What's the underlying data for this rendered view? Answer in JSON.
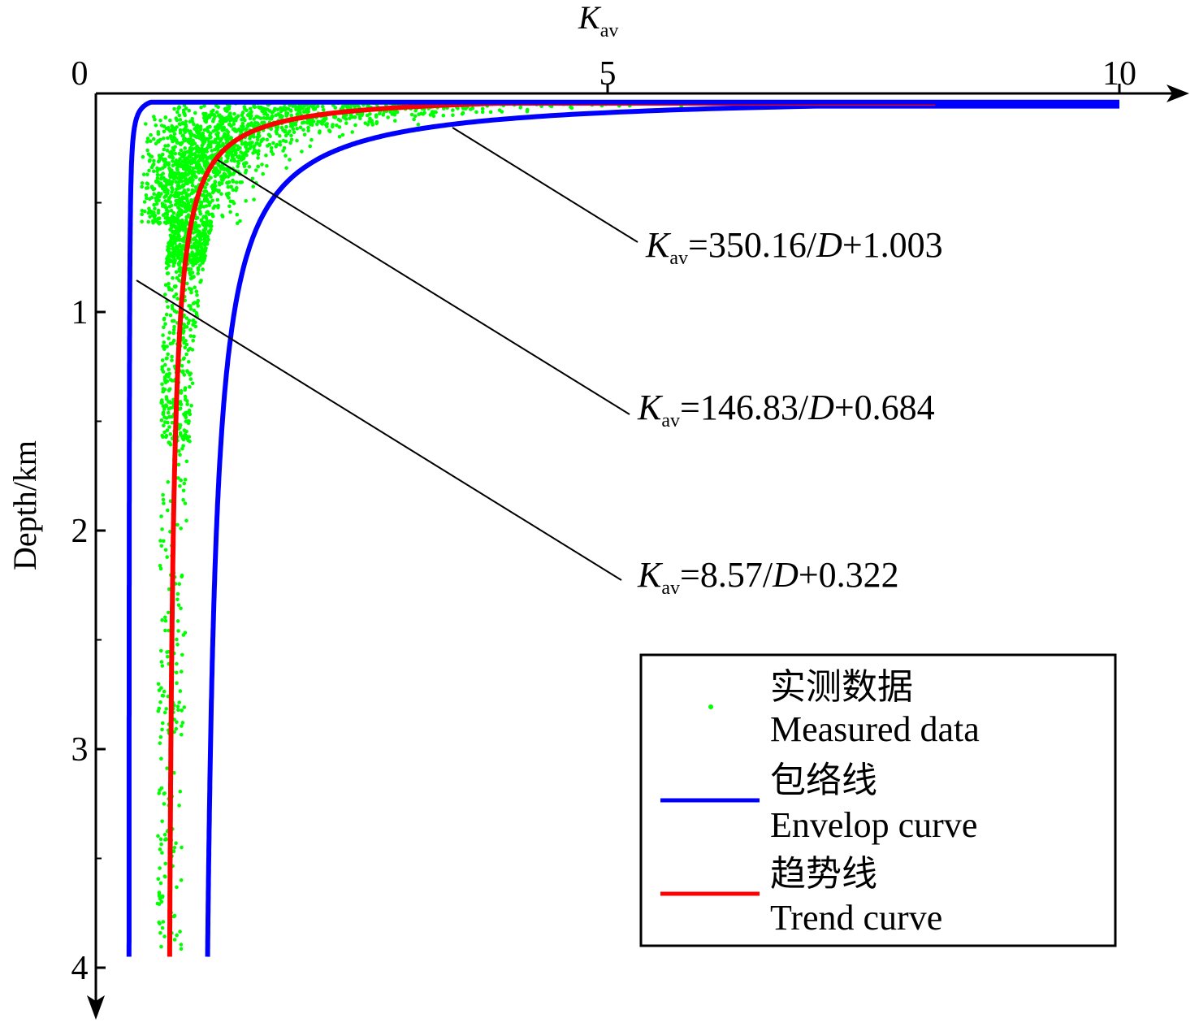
{
  "chart_data": {
    "type": "line",
    "title": "",
    "x_axis": {
      "label": "K",
      "label_sub": "av",
      "position": "top",
      "range": [
        0,
        10.5
      ],
      "ticks": [
        {
          "value": 0,
          "label": "0"
        },
        {
          "value": 5,
          "label": "5"
        },
        {
          "value": 10,
          "label": "10"
        }
      ]
    },
    "y_axis": {
      "label": "Depth/km",
      "inverted": true,
      "range": [
        0,
        4.2
      ],
      "ticks": [
        {
          "value": 0,
          "label": ""
        },
        {
          "value": 1,
          "label": "1"
        },
        {
          "value": 2,
          "label": "2"
        },
        {
          "value": 3,
          "label": "3"
        },
        {
          "value": 4,
          "label": "4"
        }
      ],
      "minor_ticks": [
        0.5,
        1.5,
        2.5,
        3.5
      ]
    },
    "series": [
      {
        "name": "Envelop curve",
        "role": "upper-envelope",
        "color": "#0000ff",
        "a": 350.16,
        "b": 1.003,
        "depth_range": [
          0.058,
          3.95
        ]
      },
      {
        "name": "Trend curve",
        "role": "trend",
        "color": "#ff0000",
        "a": 146.83,
        "b": 0.684,
        "depth_range": [
          0.045,
          3.95
        ]
      },
      {
        "name": "Envelop curve",
        "role": "lower-envelope",
        "color": "#0000ff",
        "a": 8.57,
        "b": 0.322,
        "depth_range": [
          0.04,
          3.95
        ]
      }
    ],
    "equations": [
      {
        "K": "K",
        "sub": "av",
        "rhs_pre": "=350.16/",
        "D": "D",
        "rhs_post": "+1.003"
      },
      {
        "K": "K",
        "sub": "av",
        "rhs_pre": "=146.83/",
        "D": "D",
        "rhs_post": "+0.684"
      },
      {
        "K": "K",
        "sub": "av",
        "rhs_pre": "=8.57/",
        "D": "D",
        "rhs_post": "+0.322"
      }
    ],
    "measured_data": {
      "name": "Measured data",
      "color": "#00ff00",
      "description_depth_range": [
        0.02,
        4.0
      ]
    },
    "legend": {
      "placement": "bottom-right",
      "entries": [
        {
          "cn": "实测数据",
          "en": "Measured data",
          "symbol": "dot",
          "color": "#00ff00"
        },
        {
          "cn": "包络线",
          "en": "Envelop curve",
          "symbol": "line",
          "color": "#0000ff"
        },
        {
          "cn": "趋势线",
          "en": "Trend curve",
          "symbol": "line",
          "color": "#ff0000"
        }
      ]
    },
    "grid": false
  }
}
